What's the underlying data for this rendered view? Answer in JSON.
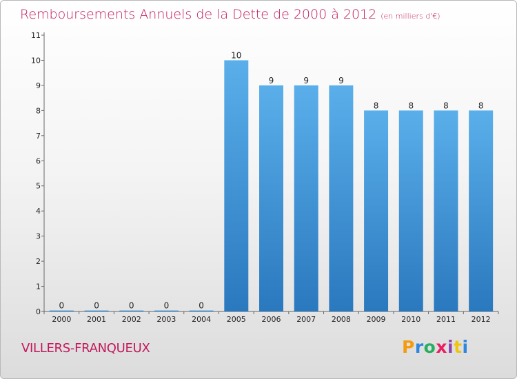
{
  "title": "Remboursements Annuels de la Dette de 2000 à 2012",
  "title_unit": "(en milliers d'€)",
  "commune": "VILLERS-FRANQUEUX",
  "logo": {
    "text": "Proxiti",
    "letter_colors": [
      "#f39c12",
      "#2e86de",
      "#27ae60",
      "#e91e63",
      "#8e44ad",
      "#f1c40f",
      "#2e86de"
    ]
  },
  "chart_data": {
    "type": "bar",
    "categories": [
      "2000",
      "2001",
      "2002",
      "2003",
      "2004",
      "2005",
      "2006",
      "2007",
      "2008",
      "2009",
      "2010",
      "2011",
      "2012"
    ],
    "values": [
      0,
      0,
      0,
      0,
      0,
      10,
      9,
      9,
      9,
      8,
      8,
      8,
      8
    ],
    "data_labels": [
      "0",
      "0",
      "0",
      "0",
      "0",
      "10",
      "9",
      "9",
      "9",
      "8",
      "8",
      "8",
      "8"
    ],
    "y_ticks": [
      "0",
      "1",
      "2",
      "3",
      "4",
      "5",
      "6",
      "7",
      "8",
      "9",
      "10",
      "11"
    ],
    "ylim": [
      0,
      11
    ],
    "bar_color": "#4a9fe0",
    "bar_color_dark": "#2a78be",
    "grid": false
  }
}
